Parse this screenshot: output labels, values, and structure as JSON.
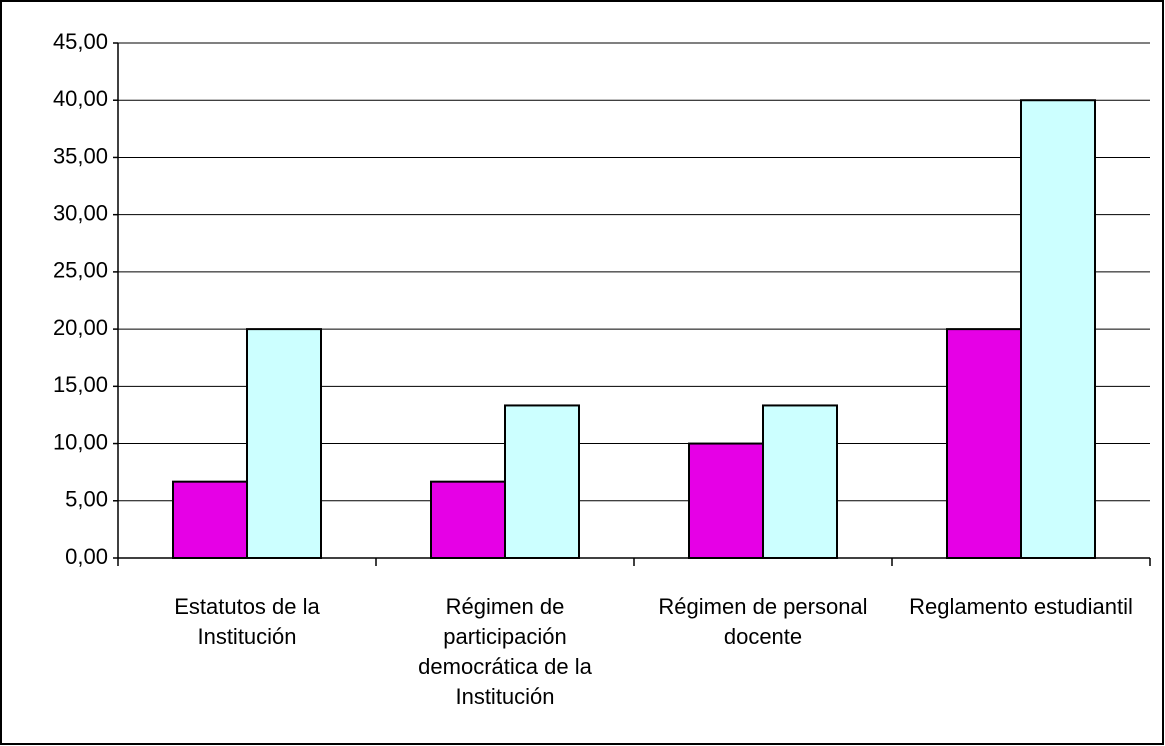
{
  "chart_data": {
    "type": "bar",
    "categories": [
      "Estatutos de la Institución",
      "Régimen de participación democrática de la Institución",
      "Régimen de personal docente",
      "Reglamento estudiantil"
    ],
    "series": [
      {
        "color": "#e600e6",
        "values": [
          6.67,
          6.67,
          10,
          20
        ]
      },
      {
        "color": "#ccffff",
        "values": [
          20,
          13.33,
          13.33,
          40
        ]
      }
    ],
    "ylim": [
      0,
      45
    ],
    "yticks": [
      {
        "value": 0,
        "label": "0,00"
      },
      {
        "value": 5,
        "label": "5,00"
      },
      {
        "value": 10,
        "label": "10,00"
      },
      {
        "value": 15,
        "label": "15,00"
      },
      {
        "value": 20,
        "label": "20,00"
      },
      {
        "value": 25,
        "label": "25,00"
      },
      {
        "value": 30,
        "label": "30,00"
      },
      {
        "value": 35,
        "label": "35,00"
      },
      {
        "value": 40,
        "label": "40,00"
      },
      {
        "value": 45,
        "label": "45,00"
      }
    ],
    "grid": true
  }
}
